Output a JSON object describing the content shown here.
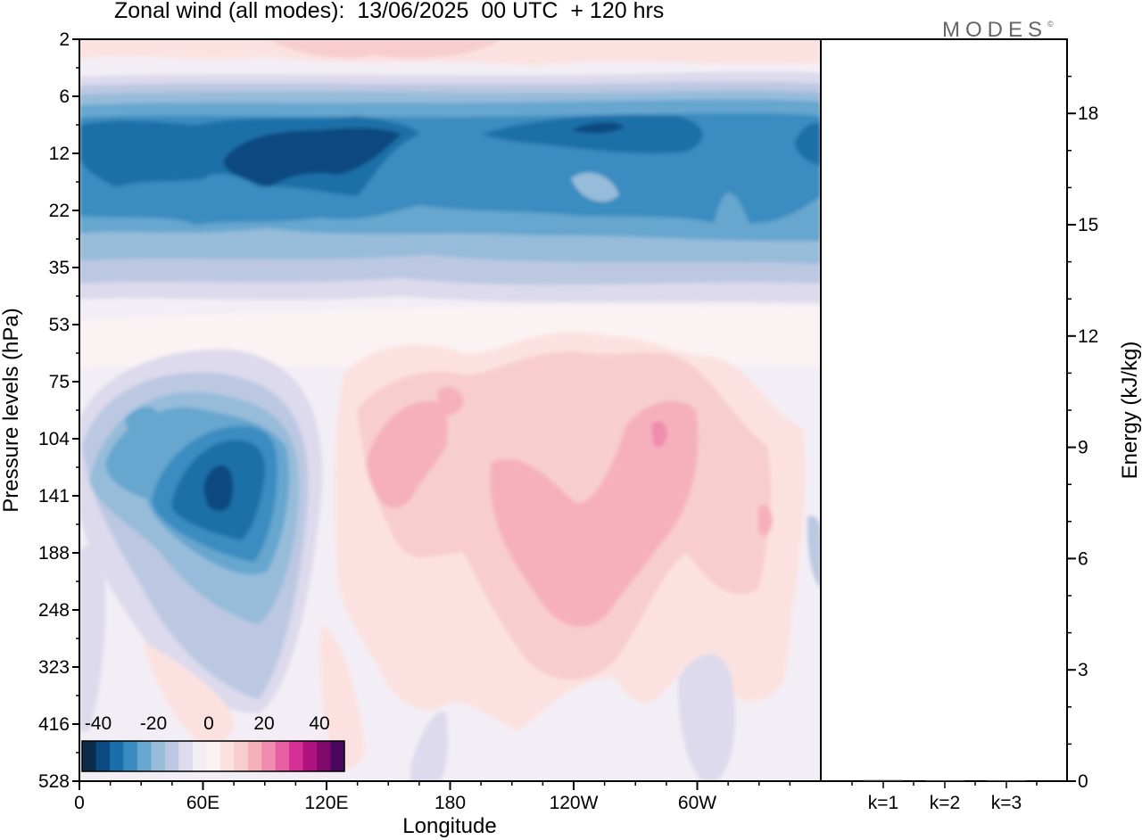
{
  "chart_data": [
    {
      "type": "heatmap",
      "title": "Zonal wind (all modes):  13/06/2025  00 UTC  + 120 hrs",
      "xlabel": "Longitude",
      "ylabel": "Pressure levels (hPa)",
      "xticks": [
        "0",
        "60E",
        "120E",
        "180",
        "120W",
        "60W"
      ],
      "yticks": [
        "2",
        "6",
        "12",
        "22",
        "35",
        "53",
        "75",
        "104",
        "141",
        "188",
        "248",
        "323",
        "416",
        "528"
      ],
      "colorbar": {
        "ticks": [
          "-40",
          "-20",
          "0",
          "20",
          "40"
        ],
        "colors": [
          "#0c2a4a",
          "#0a4a80",
          "#1a6fa8",
          "#3a8cc0",
          "#66a6cf",
          "#96bcd9",
          "#bcc8e2",
          "#dcdaec",
          "#f3eef5",
          "#fbf3f3",
          "#fbe2e0",
          "#f8cdcd",
          "#f5b0bc",
          "#f08cb0",
          "#e75fa2",
          "#d43096",
          "#b0127f",
          "#800a6c",
          "#4a0860"
        ]
      }
    },
    {
      "type": "bar",
      "categories": [
        "k=1",
        "k=2",
        "k=3"
      ],
      "values": [
        0.03,
        0.02,
        0.0
      ],
      "ylabel": "Energy (kJ/kg)",
      "yticks": [
        "0",
        "3",
        "6",
        "9",
        "12",
        "15",
        "18"
      ],
      "ylim": [
        0,
        20
      ]
    }
  ],
  "logo": {
    "text": "MODES",
    "mark": "©"
  }
}
